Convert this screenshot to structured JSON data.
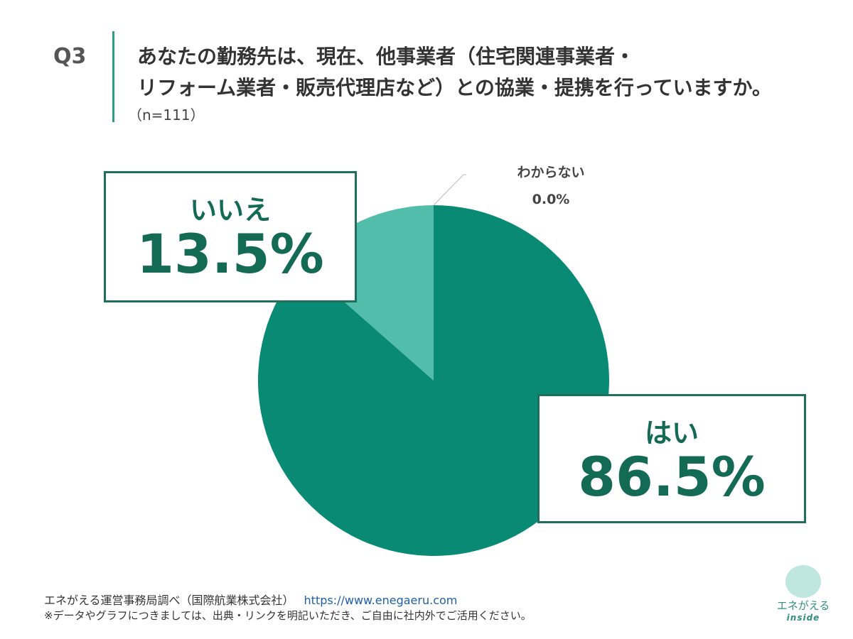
{
  "header": {
    "q": "Q3",
    "title_line1": "あなたの勤務先は、現在、他事業者（住宅関連事業者・",
    "title_line2": "リフォーム業者・販売代理店など）との協業・提携を行っていますか。",
    "n": "（n=111）"
  },
  "chart_data": {
    "type": "pie",
    "title": "あなたの勤務先は、現在、他事業者（住宅関連事業者・リフォーム業者・販売代理店など）との協業・提携を行っていますか。",
    "slices": [
      {
        "label": "はい",
        "value": 86.5,
        "display": "86.5%",
        "color": "#088a74"
      },
      {
        "label": "いいえ",
        "value": 13.5,
        "display": "13.5%",
        "color": "#52bdab"
      },
      {
        "label": "わからない",
        "value": 0.0,
        "display": "0.0%",
        "color": "#9cd9cd"
      }
    ],
    "start": "top",
    "direction": "clockwise"
  },
  "footer": {
    "source": "エネがえる運営事務局調べ（国際航業株式会社）",
    "url": "https://www.enegaeru.com",
    "note": "※データやグラフにつきましては、出典・リンクを明記いただき、ご自由に社内外でご活用ください。"
  },
  "logo": {
    "text1": "エネがえる",
    "text2": "inside"
  }
}
